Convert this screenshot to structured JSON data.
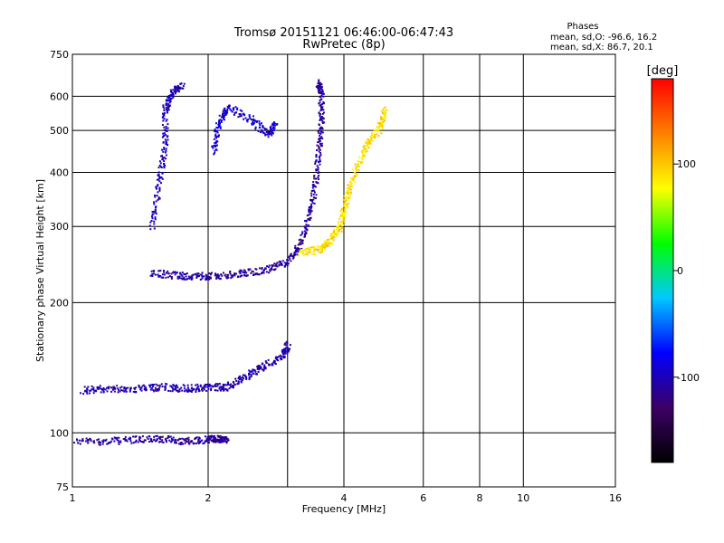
{
  "chart_data": {
    "type": "scatter",
    "title": "Tromsø 20151121 06:46:00-06:47:43",
    "subtitle": "RwPretec (8p)",
    "phases_box": {
      "title": "Phases",
      "line_o": "mean, sd,O: -96.6, 16.2",
      "line_x": "mean, sd,X: 86.7, 20.1"
    },
    "xlabel": "Frequency [MHz]",
    "ylabel": "Stationary phase Virtual Height [km]",
    "x_scale": "log",
    "y_scale": "log",
    "xlim": [
      1,
      16
    ],
    "ylim": [
      75,
      750
    ],
    "x_ticks": [
      {
        "value": 1,
        "label": "1"
      },
      {
        "value": 2,
        "label": "2"
      },
      {
        "value": 4,
        "label": "4"
      },
      {
        "value": 6,
        "label": "6"
      },
      {
        "value": 8,
        "label": "8"
      },
      {
        "value": 10,
        "label": "10"
      },
      {
        "value": 16,
        "label": "16"
      }
    ],
    "x_grid": [
      2,
      3,
      4,
      6,
      8,
      10
    ],
    "y_ticks": [
      {
        "value": 75,
        "label": "75"
      },
      {
        "value": 100,
        "label": "100"
      },
      {
        "value": 200,
        "label": "200"
      },
      {
        "value": 300,
        "label": "300"
      },
      {
        "value": 400,
        "label": "400"
      },
      {
        "value": 500,
        "label": "500"
      },
      {
        "value": 600,
        "label": "600"
      },
      {
        "value": 750,
        "label": "750"
      }
    ],
    "y_grid": [
      100,
      200,
      300,
      400,
      500,
      600
    ],
    "grid": true,
    "colorbar": {
      "label": "[deg]",
      "range": [
        -180,
        180
      ],
      "ticks": [
        {
          "value": 100,
          "label": "100"
        },
        {
          "value": 0,
          "label": "0"
        },
        {
          "value": -100,
          "label": "-100"
        }
      ],
      "stops": [
        "#000000",
        "#3c0064",
        "#0000ff",
        "#00c8ff",
        "#00ff00",
        "#ffff00",
        "#ff8000",
        "#ff0000"
      ]
    },
    "traces": [
      {
        "name": "",
        "color_phase": -110,
        "points": [
          [
            1.0,
            96
          ],
          [
            1.2,
            96
          ],
          [
            1.4,
            97
          ],
          [
            1.6,
            97
          ],
          [
            1.8,
            96
          ],
          [
            2.0,
            97
          ],
          [
            2.1,
            97
          ],
          [
            2.2,
            97
          ]
        ]
      },
      {
        "name": "",
        "color_phase": -105,
        "points": [
          [
            1.05,
            126
          ],
          [
            1.2,
            127
          ],
          [
            1.4,
            127
          ],
          [
            1.6,
            128
          ],
          [
            1.8,
            127
          ],
          [
            2.0,
            128
          ],
          [
            2.2,
            128
          ],
          [
            2.4,
            135
          ],
          [
            2.6,
            142
          ],
          [
            2.9,
            150
          ],
          [
            3.0,
            160
          ]
        ]
      },
      {
        "name": "",
        "color_phase": -110,
        "points": [
          [
            1.5,
            235
          ],
          [
            1.7,
            232
          ],
          [
            1.9,
            231
          ],
          [
            2.1,
            232
          ],
          [
            2.4,
            235
          ],
          [
            2.7,
            240
          ],
          [
            3.0,
            250
          ],
          [
            3.2,
            275
          ],
          [
            3.35,
            320
          ],
          [
            3.45,
            380
          ],
          [
            3.5,
            450
          ],
          [
            3.55,
            520
          ],
          [
            3.55,
            600
          ],
          [
            3.5,
            650
          ]
        ]
      },
      {
        "name": "",
        "color_phase": 90,
        "points": [
          [
            3.2,
            262
          ],
          [
            3.5,
            266
          ],
          [
            3.7,
            278
          ],
          [
            3.9,
            300
          ],
          [
            4.0,
            330
          ],
          [
            4.1,
            370
          ],
          [
            4.3,
            420
          ],
          [
            4.5,
            470
          ],
          [
            4.8,
            510
          ],
          [
            4.9,
            560
          ]
        ]
      },
      {
        "name": "",
        "color_phase": -100,
        "points": [
          [
            1.5,
            300
          ],
          [
            1.55,
            380
          ],
          [
            1.6,
            460
          ],
          [
            1.6,
            560
          ],
          [
            1.65,
            610
          ],
          [
            1.75,
            640
          ]
        ]
      },
      {
        "name": "",
        "color_phase": -95,
        "points": [
          [
            2.05,
            450
          ],
          [
            2.1,
            520
          ],
          [
            2.2,
            570
          ],
          [
            2.5,
            530
          ],
          [
            2.7,
            490
          ],
          [
            2.8,
            520
          ]
        ]
      }
    ]
  }
}
